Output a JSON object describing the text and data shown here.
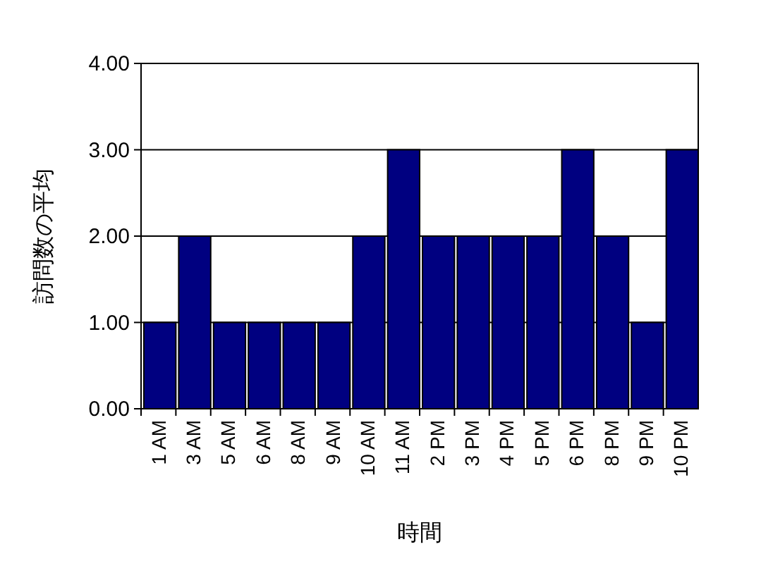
{
  "chart_data": {
    "type": "bar",
    "xlabel": "時間",
    "ylabel": "訪問数の平均",
    "categories": [
      "1 AM",
      "3 AM",
      "5 AM",
      "6 AM",
      "8 AM",
      "9 AM",
      "10 AM",
      "11 AM",
      "2 PM",
      "3 PM",
      "4 PM",
      "5 PM",
      "6 PM",
      "8 PM",
      "9 PM",
      "10 PM"
    ],
    "values": [
      1,
      2,
      1,
      1,
      1,
      1,
      2,
      3,
      2,
      2,
      2,
      2,
      3,
      2,
      1,
      3
    ],
    "color": "#000080",
    "ylim": [
      0,
      4
    ],
    "yticks": [
      {
        "value": 0,
        "label": "0.00"
      },
      {
        "value": 1,
        "label": "1.00"
      },
      {
        "value": 2,
        "label": "2.00"
      },
      {
        "value": 3,
        "label": "3.00"
      },
      {
        "value": 4,
        "label": "4.00"
      }
    ],
    "grid": "y"
  }
}
